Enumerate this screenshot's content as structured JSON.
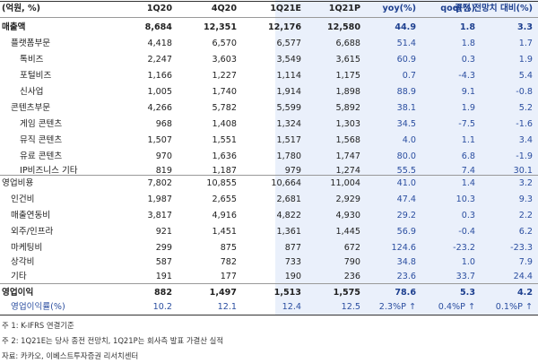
{
  "table": {
    "headers": [
      "(억원, %)",
      "1Q20",
      "4Q20",
      "1Q21E",
      "1Q21P",
      "yoy(%)",
      "qoq(%)",
      "종전 전망치 대비(%)"
    ],
    "rows": [
      {
        "label": "매출액",
        "values": [
          "8,684",
          "12,351",
          "12,176",
          "12,580",
          "44.9",
          "1.8",
          "3.3"
        ]
      },
      {
        "label": "플랫폼부문",
        "values": [
          "4,418",
          "6,570",
          "6,577",
          "6,688",
          "51.4",
          "1.8",
          "1.7"
        ]
      },
      {
        "label": "톡비즈",
        "values": [
          "2,247",
          "3,603",
          "3,549",
          "3,615",
          "60.9",
          "0.3",
          "1.9"
        ]
      },
      {
        "label": "포털비즈",
        "values": [
          "1,166",
          "1,227",
          "1,114",
          "1,175",
          "0.7",
          "-4.3",
          "5.4"
        ]
      },
      {
        "label": "신사업",
        "values": [
          "1,005",
          "1,740",
          "1,914",
          "1,898",
          "88.9",
          "9.1",
          "-0.8"
        ]
      },
      {
        "label": "콘텐츠부문",
        "values": [
          "4,266",
          "5,782",
          "5,599",
          "5,892",
          "38.1",
          "1.9",
          "5.2"
        ]
      },
      {
        "label": "게임 콘텐츠",
        "values": [
          "968",
          "1,408",
          "1,324",
          "1,303",
          "34.5",
          "-7.5",
          "-1.6"
        ]
      },
      {
        "label": "뮤직 콘텐츠",
        "values": [
          "1,507",
          "1,551",
          "1,517",
          "1,568",
          "4.0",
          "1.1",
          "3.4"
        ]
      },
      {
        "label": "유료 콘텐츠",
        "values": [
          "970",
          "1,636",
          "1,780",
          "1,747",
          "80.0",
          "6.8",
          "-1.9"
        ]
      },
      {
        "label": "IP비즈니스 기타",
        "values": [
          "819",
          "1,187",
          "979",
          "1,274",
          "55.5",
          "7.4",
          "30.1"
        ]
      },
      {
        "label": "영업비용",
        "values": [
          "7,802",
          "10,855",
          "10,664",
          "11,004",
          "41.0",
          "1.4",
          "3.2"
        ]
      },
      {
        "label": "인건비",
        "values": [
          "1,987",
          "2,655",
          "2,681",
          "2,929",
          "47.4",
          "10.3",
          "9.3"
        ]
      },
      {
        "label": "매출연동비",
        "values": [
          "3,817",
          "4,916",
          "4,822",
          "4,930",
          "29.2",
          "0.3",
          "2.2"
        ]
      },
      {
        "label": "외주/인프라",
        "values": [
          "921",
          "1,451",
          "1,361",
          "1,445",
          "56.9",
          "-0.4",
          "6.2"
        ]
      },
      {
        "label": "마케팅비",
        "values": [
          "299",
          "875",
          "877",
          "672",
          "124.6",
          "-23.2",
          "-23.3"
        ]
      },
      {
        "label": "상각비",
        "values": [
          "587",
          "782",
          "733",
          "790",
          "34.8",
          "1.0",
          "7.9"
        ]
      },
      {
        "label": "기타",
        "values": [
          "191",
          "177",
          "190",
          "236",
          "23.6",
          "33.7",
          "24.4"
        ]
      },
      {
        "label": "영업이익",
        "values": [
          "882",
          "1,497",
          "1,513",
          "1,575",
          "78.6",
          "5.3",
          "4.2"
        ]
      },
      {
        "label": "영업이익률(%)",
        "values": [
          "10.2",
          "12.1",
          "12.4",
          "12.5",
          "2.3%P ↑",
          "0.4%P ↑",
          "0.1%P ↑"
        ]
      }
    ]
  },
  "notes": [
    "주 1:  K-IFRS 연결기준",
    "주 2: 1Q21E는 당사 종전 전망치, 1Q21P는 회사측 발표 가결산 실적",
    "자료: 카카오, 이베스트투자증권 리서치센터"
  ]
}
